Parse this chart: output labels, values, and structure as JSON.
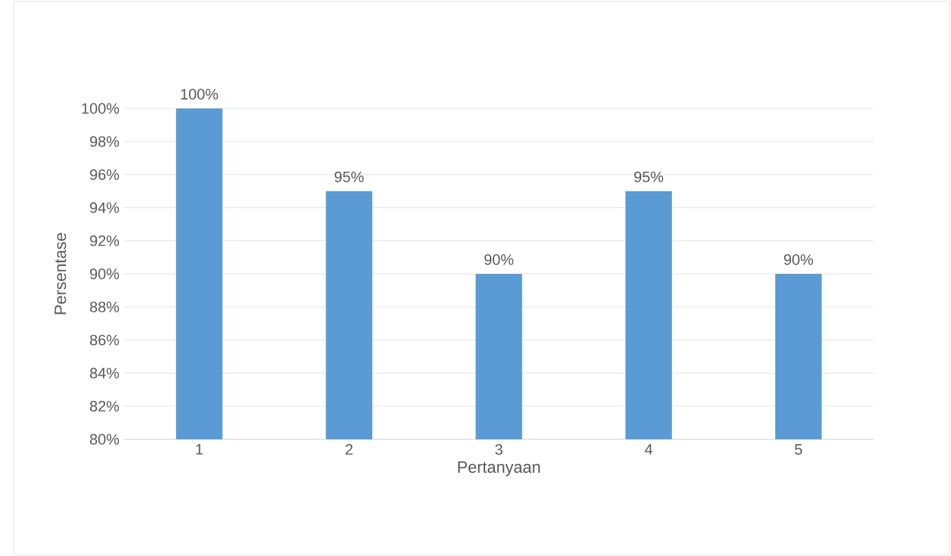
{
  "chart_data": {
    "type": "bar",
    "xlabel": "Pertanyaan",
    "ylabel": "Persentase",
    "categories": [
      "1",
      "2",
      "3",
      "4",
      "5"
    ],
    "values": [
      100,
      95,
      90,
      95,
      90
    ],
    "value_labels": [
      "100%",
      "95%",
      "90%",
      "95%",
      "90%"
    ],
    "color": "#5b9bd5",
    "ylim": [
      80,
      100
    ],
    "yticks": [
      {
        "value": 80,
        "label": "80%"
      },
      {
        "value": 82,
        "label": "82%"
      },
      {
        "value": 84,
        "label": "84%"
      },
      {
        "value": 86,
        "label": "86%"
      },
      {
        "value": 88,
        "label": "88%"
      },
      {
        "value": 90,
        "label": "90%"
      },
      {
        "value": 92,
        "label": "92%"
      },
      {
        "value": 94,
        "label": "94%"
      },
      {
        "value": 96,
        "label": "96%"
      },
      {
        "value": 98,
        "label": "98%"
      },
      {
        "value": 100,
        "label": "100%"
      }
    ],
    "grid": "y"
  }
}
